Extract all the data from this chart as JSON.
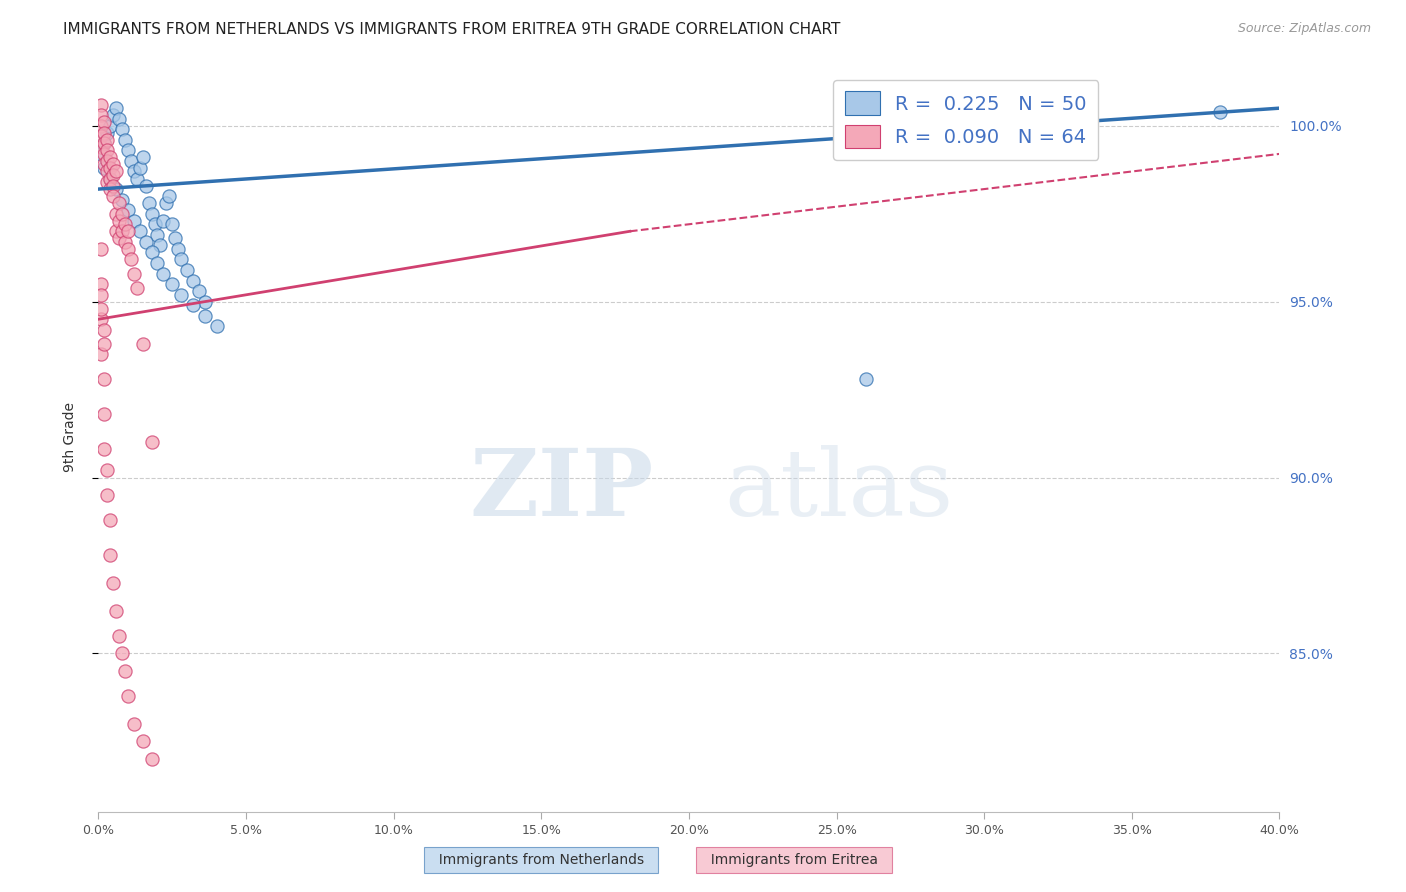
{
  "title": "IMMIGRANTS FROM NETHERLANDS VS IMMIGRANTS FROM ERITREA 9TH GRADE CORRELATION CHART",
  "source": "Source: ZipAtlas.com",
  "ylabel": "9th Grade",
  "legend_r_blue": "R = 0.225",
  "legend_n_blue": "N = 50",
  "legend_r_pink": "R = 0.090",
  "legend_n_pink": "N = 64",
  "legend_label_blue": "Immigrants from Netherlands",
  "legend_label_pink": "Immigrants from Eritrea",
  "blue_color": "#a8c8e8",
  "pink_color": "#f4a8b8",
  "blue_line_color": "#3070b0",
  "pink_line_color": "#d04070",
  "watermark_zip": "ZIP",
  "watermark_atlas": "atlas",
  "blue_scatter_x": [
    0.38,
    0.26,
    0.001,
    0.002,
    0.003,
    0.004,
    0.005,
    0.006,
    0.007,
    0.008,
    0.009,
    0.01,
    0.011,
    0.012,
    0.013,
    0.014,
    0.015,
    0.016,
    0.017,
    0.018,
    0.019,
    0.02,
    0.021,
    0.022,
    0.023,
    0.024,
    0.025,
    0.026,
    0.027,
    0.028,
    0.03,
    0.032,
    0.034,
    0.036,
    0.002,
    0.004,
    0.006,
    0.008,
    0.01,
    0.012,
    0.014,
    0.016,
    0.018,
    0.02,
    0.022,
    0.025,
    0.028,
    0.032,
    0.036,
    0.04
  ],
  "blue_scatter_y": [
    100.4,
    92.8,
    99.2,
    99.5,
    99.8,
    100.0,
    100.3,
    100.5,
    100.2,
    99.9,
    99.6,
    99.3,
    99.0,
    98.7,
    98.5,
    98.8,
    99.1,
    98.3,
    97.8,
    97.5,
    97.2,
    96.9,
    96.6,
    97.3,
    97.8,
    98.0,
    97.2,
    96.8,
    96.5,
    96.2,
    95.9,
    95.6,
    95.3,
    95.0,
    98.8,
    98.5,
    98.2,
    97.9,
    97.6,
    97.3,
    97.0,
    96.7,
    96.4,
    96.1,
    95.8,
    95.5,
    95.2,
    94.9,
    94.6,
    94.3
  ],
  "pink_scatter_x": [
    0.001,
    0.001,
    0.001,
    0.001,
    0.001,
    0.002,
    0.002,
    0.002,
    0.002,
    0.002,
    0.003,
    0.003,
    0.003,
    0.003,
    0.003,
    0.004,
    0.004,
    0.004,
    0.004,
    0.005,
    0.005,
    0.005,
    0.005,
    0.006,
    0.006,
    0.006,
    0.007,
    0.007,
    0.007,
    0.008,
    0.008,
    0.009,
    0.009,
    0.01,
    0.01,
    0.011,
    0.012,
    0.013,
    0.015,
    0.018,
    0.001,
    0.001,
    0.001,
    0.001,
    0.002,
    0.002,
    0.002,
    0.003,
    0.003,
    0.004,
    0.004,
    0.005,
    0.006,
    0.007,
    0.008,
    0.009,
    0.01,
    0.012,
    0.015,
    0.018,
    0.001,
    0.001,
    0.002,
    0.002
  ],
  "pink_scatter_y": [
    100.6,
    100.3,
    100.0,
    99.7,
    99.4,
    100.1,
    99.8,
    99.5,
    99.2,
    98.9,
    99.6,
    99.3,
    99.0,
    98.7,
    98.4,
    99.1,
    98.8,
    98.5,
    98.2,
    98.9,
    98.6,
    98.3,
    98.0,
    98.7,
    97.5,
    97.0,
    97.8,
    97.3,
    96.8,
    97.5,
    97.0,
    97.2,
    96.7,
    97.0,
    96.5,
    96.2,
    95.8,
    95.4,
    93.8,
    91.0,
    96.5,
    95.5,
    94.5,
    93.5,
    92.8,
    91.8,
    90.8,
    90.2,
    89.5,
    88.8,
    87.8,
    87.0,
    86.2,
    85.5,
    85.0,
    84.5,
    83.8,
    83.0,
    82.5,
    82.0,
    95.2,
    94.8,
    94.2,
    93.8
  ]
}
